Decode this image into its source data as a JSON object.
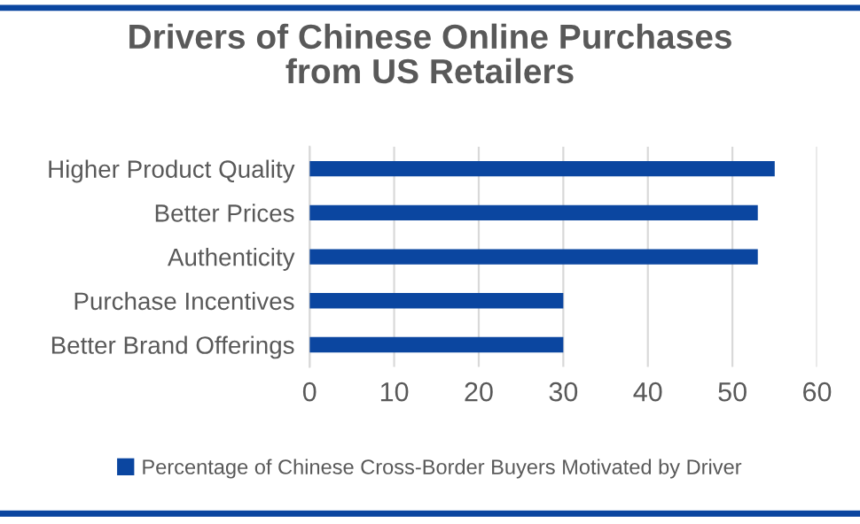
{
  "chart_data": {
    "type": "bar",
    "orientation": "horizontal",
    "title": "Drivers of Chinese Online Purchases\nfrom US Retailers",
    "categories": [
      "Higher Product Quality",
      "Better Prices",
      "Authenticity",
      "Purchase Incentives",
      "Better Brand Offerings"
    ],
    "series": [
      {
        "name": "Percentage of Chinese Cross-Border Buyers Motivated by Driver",
        "color": "#0b46a0",
        "values": [
          55,
          53,
          53,
          30,
          30
        ]
      }
    ],
    "xlim": [
      0,
      60
    ],
    "xticks": [
      0,
      10,
      20,
      30,
      40,
      50,
      60
    ],
    "grid": "x",
    "legend": "bottom"
  }
}
